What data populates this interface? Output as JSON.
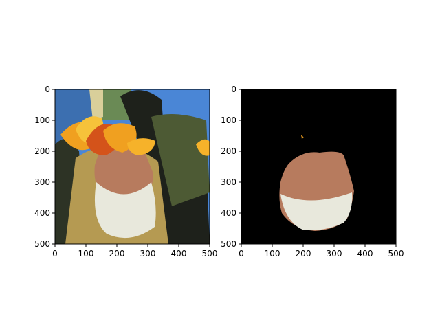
{
  "chart_data": [
    {
      "type": "image",
      "description_visible": "photo",
      "xlim": [
        0,
        500
      ],
      "ylim": [
        500,
        0
      ],
      "xticks": [
        0,
        100,
        200,
        300,
        400,
        500
      ],
      "yticks": [
        0,
        100,
        200,
        300,
        400,
        500
      ],
      "xticklabels": [
        "0",
        "100",
        "200",
        "300",
        "400",
        "500"
      ],
      "yticklabels": [
        "0",
        "100",
        "200",
        "300",
        "400",
        "500"
      ]
    },
    {
      "type": "image",
      "description_visible": "masked photo",
      "xlim": [
        0,
        500
      ],
      "ylim": [
        500,
        0
      ],
      "xticks": [
        0,
        100,
        200,
        300,
        400,
        500
      ],
      "yticks": [
        0,
        100,
        200,
        300,
        400,
        500
      ],
      "xticklabels": [
        "0",
        "100",
        "200",
        "300",
        "400",
        "500"
      ],
      "yticklabels": [
        "0",
        "100",
        "200",
        "300",
        "400",
        "500"
      ]
    }
  ],
  "colors": {
    "mask_background": "#000000",
    "sky": "#4a86d6",
    "robe": "#b59a52",
    "skin": "#b77b5e",
    "beard": "#e8e8dc",
    "leaf_orange": "#f0a020",
    "leaf_red": "#d4531a",
    "dark_figure": "#1e211b"
  }
}
